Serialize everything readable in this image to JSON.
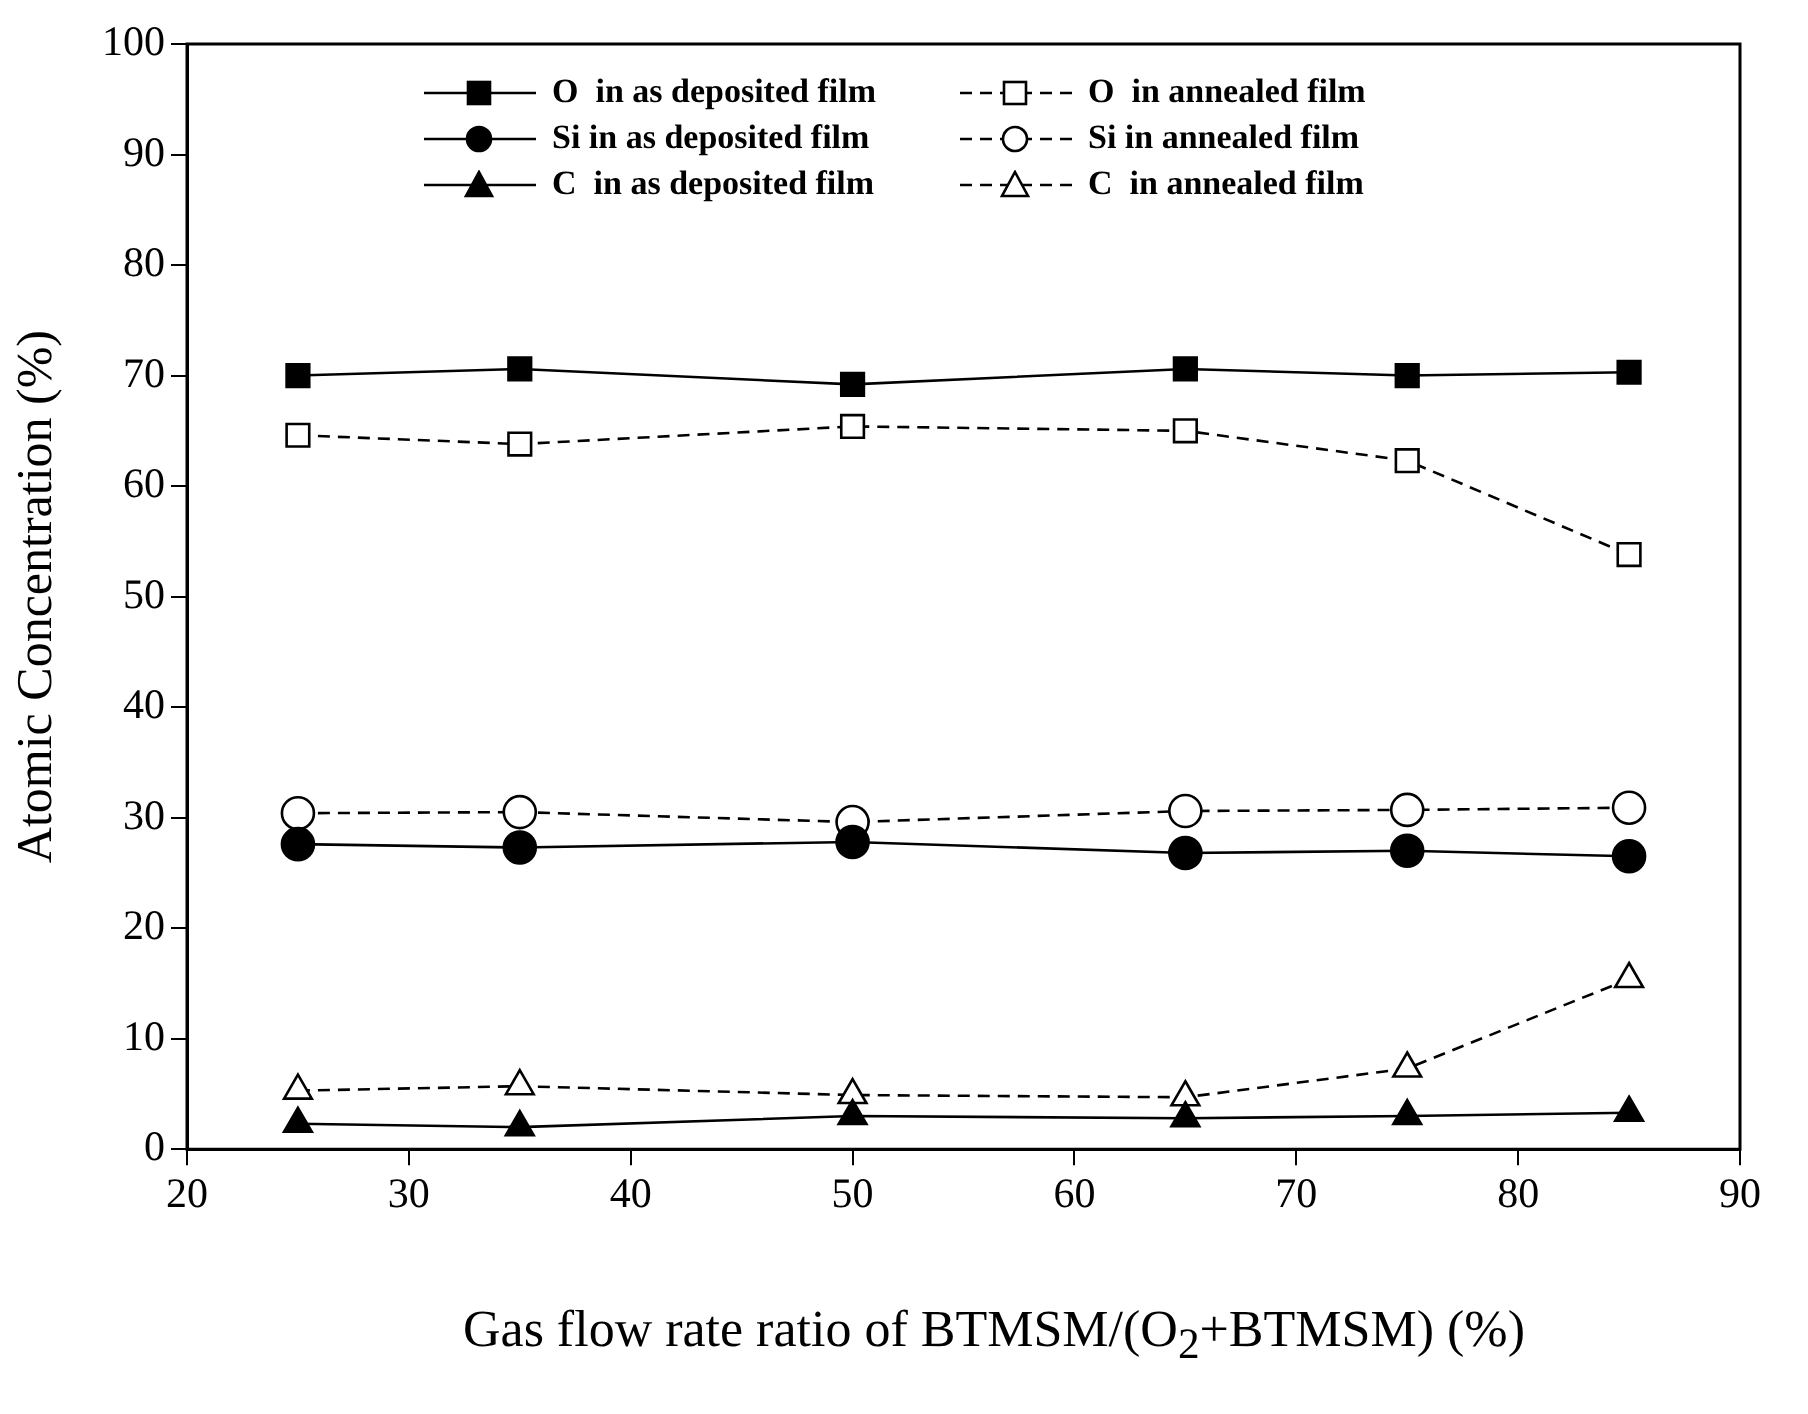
{
  "chart_data": {
    "type": "line",
    "xlabel": "Gas flow rate ratio of BTMSM/(O$_{2}$+BTMSM) (%)",
    "ylabel": "Atomic Concentration (%)",
    "x": [
      25,
      35,
      50,
      65,
      75,
      85
    ],
    "xlim": [
      20,
      90
    ],
    "xticks": [
      20,
      30,
      40,
      50,
      60,
      70,
      80,
      90
    ],
    "ylim": [
      0,
      100
    ],
    "yticks": [
      0,
      10,
      20,
      30,
      40,
      50,
      60,
      70,
      80,
      90,
      100
    ],
    "grid": false,
    "legend": "top",
    "series": [
      {
        "name": "O  in as deposited film",
        "color": "#000000",
        "marker": "square",
        "line_style": "solid",
        "values": [
          70,
          70.6,
          69.2,
          70.6,
          70,
          70.3
        ]
      },
      {
        "name": "Si in as deposited film",
        "color": "#000000",
        "marker": "circle",
        "line_style": "solid",
        "values": [
          27.6,
          27.3,
          27.8,
          26.8,
          27,
          26.5
        ]
      },
      {
        "name": "C  in as deposited film",
        "color": "#000000",
        "marker": "triangle",
        "line_style": "solid",
        "values": [
          2.3,
          2,
          3,
          2.8,
          3,
          3.3
        ]
      },
      {
        "name": "O  in annealed film",
        "color": "#000000",
        "marker": "square",
        "line_style": "dashed",
        "values": [
          64.6,
          63.8,
          65.4,
          65,
          62.3,
          53.8
        ]
      },
      {
        "name": "Si in annealed film",
        "color": "#000000",
        "marker": "circle",
        "line_style": "dashed",
        "values": [
          30.4,
          30.5,
          29.6,
          30.6,
          30.7,
          30.9
        ]
      },
      {
        "name": "C  in annealed film",
        "color": "#000000",
        "marker": "triangle",
        "line_style": "dashed",
        "values": [
          5.3,
          5.7,
          4.9,
          4.7,
          7.3,
          15.4
        ]
      }
    ]
  }
}
